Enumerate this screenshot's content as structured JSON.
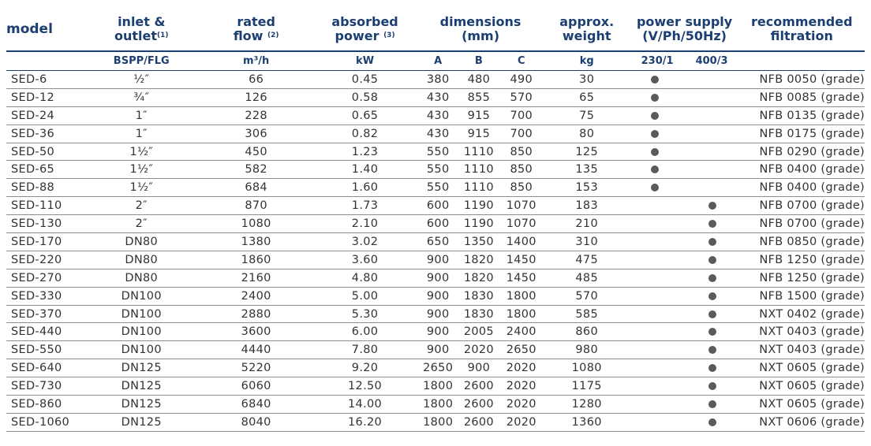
{
  "headers": {
    "model": "model",
    "inlet_l1": "inlet &",
    "inlet_l2": "outlet",
    "inlet_note": "(1)",
    "flow_l1": "rated",
    "flow_l2": "flow",
    "flow_note": "(2)",
    "power_l1": "absorbed",
    "power_l2": "power",
    "power_note": "(3)",
    "dims_l1": "dimensions",
    "dims_l2": "(mm)",
    "weight_l1": "approx.",
    "weight_l2": "weight",
    "ps_l1": "power supply",
    "ps_l2": "(V/Ph/50Hz)",
    "filter_l1": "recommended",
    "filter_l2": "filtration"
  },
  "units": {
    "inlet": "BSPP/FLG",
    "flow": "m³/h",
    "power": "kW",
    "dim_a": "A",
    "dim_b": "B",
    "dim_c": "C",
    "weight": "kg",
    "ps_230": "230/1",
    "ps_400": "400/3"
  },
  "dot_color": "#5a5a5a",
  "header_color": "#1c3f72",
  "rows": [
    {
      "model": "SED-6",
      "inlet": "½″",
      "flow": "66",
      "power": "0.45",
      "a": "380",
      "b": "480",
      "c": "490",
      "weight": "30",
      "ps": "230/1",
      "filter": "NFB 0050 (grade)"
    },
    {
      "model": "SED-12",
      "inlet": "¾″",
      "flow": "126",
      "power": "0.58",
      "a": "430",
      "b": "855",
      "c": "570",
      "weight": "65",
      "ps": "230/1",
      "filter": "NFB 0085 (grade)"
    },
    {
      "model": "SED-24",
      "inlet": "1″",
      "flow": "228",
      "power": "0.65",
      "a": "430",
      "b": "915",
      "c": "700",
      "weight": "75",
      "ps": "230/1",
      "filter": "NFB 0135 (grade)"
    },
    {
      "model": "SED-36",
      "inlet": "1″",
      "flow": "306",
      "power": "0.82",
      "a": "430",
      "b": "915",
      "c": "700",
      "weight": "80",
      "ps": "230/1",
      "filter": "NFB 0175 (grade)"
    },
    {
      "model": "SED-50",
      "inlet": "1½″",
      "flow": "450",
      "power": "1.23",
      "a": "550",
      "b": "1110",
      "c": "850",
      "weight": "125",
      "ps": "230/1",
      "filter": "NFB 0290 (grade)"
    },
    {
      "model": "SED-65",
      "inlet": "1½″",
      "flow": "582",
      "power": "1.40",
      "a": "550",
      "b": "1110",
      "c": "850",
      "weight": "135",
      "ps": "230/1",
      "filter": "NFB 0400 (grade)"
    },
    {
      "model": "SED-88",
      "inlet": "1½″",
      "flow": "684",
      "power": "1.60",
      "a": "550",
      "b": "1110",
      "c": "850",
      "weight": "153",
      "ps": "230/1",
      "filter": "NFB 0400 (grade)"
    },
    {
      "model": "SED-110",
      "inlet": "2″",
      "flow": "870",
      "power": "1.73",
      "a": "600",
      "b": "1190",
      "c": "1070",
      "weight": "183",
      "ps": "400/3",
      "filter": "NFB 0700 (grade)"
    },
    {
      "model": "SED-130",
      "inlet": "2″",
      "flow": "1080",
      "power": "2.10",
      "a": "600",
      "b": "1190",
      "c": "1070",
      "weight": "210",
      "ps": "400/3",
      "filter": "NFB 0700 (grade)"
    },
    {
      "model": "SED-170",
      "inlet": "DN80",
      "flow": "1380",
      "power": "3.02",
      "a": "650",
      "b": "1350",
      "c": "1400",
      "weight": "310",
      "ps": "400/3",
      "filter": "NFB 0850 (grade)"
    },
    {
      "model": "SED-220",
      "inlet": "DN80",
      "flow": "1860",
      "power": "3.60",
      "a": "900",
      "b": "1820",
      "c": "1450",
      "weight": "475",
      "ps": "400/3",
      "filter": "NFB 1250 (grade)"
    },
    {
      "model": "SED-270",
      "inlet": "DN80",
      "flow": "2160",
      "power": "4.80",
      "a": "900",
      "b": "1820",
      "c": "1450",
      "weight": "485",
      "ps": "400/3",
      "filter": "NFB 1250 (grade)"
    },
    {
      "model": "SED-330",
      "inlet": "DN100",
      "flow": "2400",
      "power": "5.00",
      "a": "900",
      "b": "1830",
      "c": "1800",
      "weight": "570",
      "ps": "400/3",
      "filter": "NFB 1500 (grade)"
    },
    {
      "model": "SED-370",
      "inlet": "DN100",
      "flow": "2880",
      "power": "5.30",
      "a": "900",
      "b": "1830",
      "c": "1800",
      "weight": "585",
      "ps": "400/3",
      "filter": "NXT 0402 (grade)"
    },
    {
      "model": "SED-440",
      "inlet": "DN100",
      "flow": "3600",
      "power": "6.00",
      "a": "900",
      "b": "2005",
      "c": "2400",
      "weight": "860",
      "ps": "400/3",
      "filter": "NXT 0403 (grade)"
    },
    {
      "model": "SED-550",
      "inlet": "DN100",
      "flow": "4440",
      "power": "7.80",
      "a": "900",
      "b": "2020",
      "c": "2650",
      "weight": "980",
      "ps": "400/3",
      "filter": "NXT 0403 (grade)"
    },
    {
      "model": "SED-640",
      "inlet": "DN125",
      "flow": "5220",
      "power": "9.20",
      "a": "2650",
      "b": "900",
      "c": "2020",
      "weight": "1080",
      "ps": "400/3",
      "filter": "NXT 0605 (grade)"
    },
    {
      "model": "SED-730",
      "inlet": "DN125",
      "flow": "6060",
      "power": "12.50",
      "a": "1800",
      "b": "2600",
      "c": "2020",
      "weight": "1175",
      "ps": "400/3",
      "filter": "NXT 0605 (grade)"
    },
    {
      "model": "SED-860",
      "inlet": "DN125",
      "flow": "6840",
      "power": "14.00",
      "a": "1800",
      "b": "2600",
      "c": "2020",
      "weight": "1280",
      "ps": "400/3",
      "filter": "NXT 0605 (grade)"
    },
    {
      "model": "SED-1060",
      "inlet": "DN125",
      "flow": "8040",
      "power": "16.20",
      "a": "1800",
      "b": "2600",
      "c": "2020",
      "weight": "1360",
      "ps": "400/3",
      "filter": "NXT 0606 (grade)"
    }
  ]
}
